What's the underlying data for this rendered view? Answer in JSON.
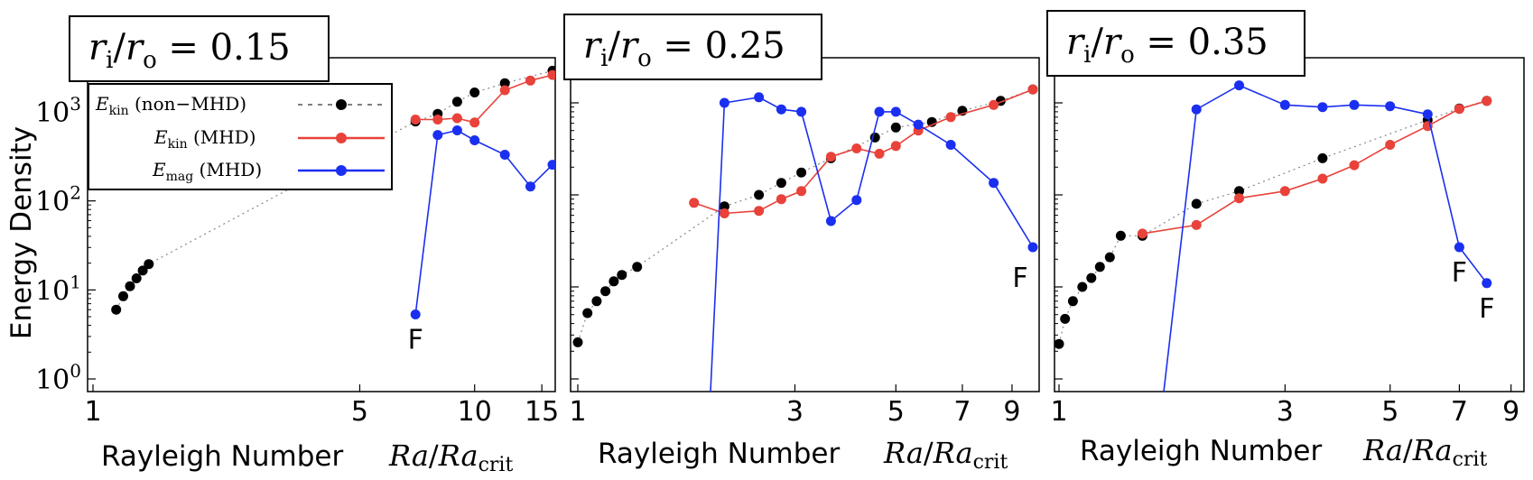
{
  "y_axis_label": "Energy Density",
  "chart_data": [
    {
      "type": "line",
      "title": "r_i/r_o = 0.15",
      "title_parts": {
        "r": "r",
        "i": "i",
        "slash": "/",
        "o": "o",
        "value": " = 0.15"
      },
      "xscale": "log",
      "yscale": "log",
      "xlim": [
        1.0,
        16.0
      ],
      "ylim": [
        1,
        3000
      ],
      "xticks": [
        1,
        5,
        10,
        15
      ],
      "yticks": [
        {
          "value": 1,
          "base": "10",
          "exp": "0"
        },
        {
          "value": 10,
          "base": "10",
          "exp": "1"
        },
        {
          "value": 100,
          "base": "10",
          "exp": "2"
        },
        {
          "value": 1000,
          "base": "10",
          "exp": "3"
        }
      ],
      "xlabel_text": "Rayleigh Number",
      "xlabel_math": {
        "ra": "Ra",
        "slash": "/",
        "ra2": "Ra",
        "sub": "crit"
      },
      "legend": {
        "placement": "upper-left",
        "entries": [
          {
            "symbol": "E",
            "sub": "kin",
            "label": " (non−MHD)",
            "style": "dotted-black"
          },
          {
            "symbol": "E",
            "sub": "kin",
            "label": " (MHD)",
            "style": "red-line"
          },
          {
            "symbol": "E",
            "sub": "mag",
            "label": " (MHD)",
            "style": "blue-line"
          }
        ]
      },
      "series": [
        {
          "name": "E_kin (non-MHD)",
          "color": "#000000",
          "line": "dotted",
          "x": [
            1.15,
            1.2,
            1.25,
            1.3,
            1.35,
            1.4,
            7.0,
            8.0,
            9.0,
            10.0,
            12.0,
            16.0
          ],
          "y": [
            6,
            8.5,
            11,
            13.5,
            16.5,
            19.5,
            780,
            950,
            1300,
            1650,
            2100,
            2900
          ]
        },
        {
          "name": "E_kin (MHD)",
          "color": "#e8423a",
          "line": "solid",
          "x": [
            7.0,
            8.0,
            9.0,
            10.0,
            12.0,
            14.0,
            16.0
          ],
          "y": [
            820,
            820,
            850,
            760,
            1750,
            2250,
            2600
          ]
        },
        {
          "name": "E_mag (MHD)",
          "color": "#1a2ff0",
          "line": "solid",
          "x": [
            7.0,
            8.0,
            9.0,
            10.0,
            12.0,
            14.0,
            16.0
          ],
          "y": [
            5.3,
            550,
            620,
            480,
            330,
            145,
            255
          ]
        }
      ],
      "annotations": [
        {
          "text": "F",
          "x": 7.0,
          "y": 5.3,
          "position": "below"
        }
      ]
    },
    {
      "type": "line",
      "title": "r_i/r_o = 0.25",
      "title_parts": {
        "r": "r",
        "i": "i",
        "slash": "/",
        "o": "o",
        "value": " = 0.25"
      },
      "xscale": "log",
      "yscale": "log",
      "xlim": [
        1.0,
        10.0
      ],
      "ylim": [
        1,
        3000
      ],
      "xticks": [
        1,
        3,
        5,
        7,
        9
      ],
      "xlabel_text": "Rayleigh Number",
      "xlabel_math": {
        "ra": "Ra",
        "slash": "/",
        "ra2": "Ra",
        "sub": "crit"
      },
      "series": [
        {
          "name": "E_kin (non-MHD)",
          "color": "#000000",
          "line": "dotted",
          "x": [
            1.0,
            1.05,
            1.1,
            1.15,
            1.2,
            1.25,
            1.35,
            2.1,
            2.5,
            2.8,
            3.1,
            3.6,
            4.5,
            5.0,
            6.0,
            7.0,
            8.5,
            10.0
          ],
          "y": [
            2.5,
            5.2,
            7,
            9,
            11.5,
            13.5,
            16.5,
            75,
            100,
            135,
            175,
            250,
            420,
            540,
            620,
            820,
            1050,
            1400
          ]
        },
        {
          "name": "E_kin (MHD)",
          "color": "#e8423a",
          "line": "solid",
          "x": [
            1.8,
            2.1,
            2.5,
            2.8,
            3.1,
            3.6,
            4.1,
            4.6,
            5.0,
            5.6,
            6.6,
            8.2,
            10.0
          ],
          "y": [
            82,
            63,
            67,
            90,
            110,
            260,
            320,
            280,
            340,
            500,
            700,
            950,
            1400
          ]
        },
        {
          "name": "E_mag (MHD)",
          "color": "#1a2ff0",
          "line": "solid",
          "x": [
            1.95,
            2.1,
            2.5,
            2.8,
            3.1,
            3.6,
            4.1,
            4.6,
            5.0,
            5.6,
            6.6,
            8.2,
            10.0
          ],
          "y": [
            0.5,
            1000,
            1150,
            850,
            800,
            52,
            88,
            800,
            800,
            580,
            350,
            135,
            27
          ]
        }
      ],
      "annotations": [
        {
          "text": "F",
          "x": 10.0,
          "y": 27,
          "position": "below-left"
        }
      ]
    },
    {
      "type": "line",
      "title": "r_i/r_o = 0.35",
      "title_parts": {
        "r": "r",
        "i": "i",
        "slash": "/",
        "o": "o",
        "value": " = 0.35"
      },
      "xscale": "log",
      "yscale": "log",
      "xlim": [
        1.0,
        9.5
      ],
      "ylim": [
        1,
        3000
      ],
      "xticks": [
        1,
        3,
        5,
        7,
        9
      ],
      "xlabel_text": "Rayleigh Number",
      "xlabel_math": {
        "ra": "Ra",
        "slash": "/",
        "ra2": "Ra",
        "sub": "crit"
      },
      "series": [
        {
          "name": "E_kin (non-MHD)",
          "color": "#000000",
          "line": "dotted",
          "x": [
            1.0,
            1.03,
            1.07,
            1.12,
            1.17,
            1.22,
            1.28,
            1.35,
            1.5,
            1.95,
            2.4,
            3.6,
            6.0,
            7.0,
            8.0
          ],
          "y": [
            2.4,
            4.5,
            7,
            10,
            12.5,
            16.5,
            21,
            36,
            36,
            80,
            110,
            250,
            650,
            870,
            1050
          ]
        },
        {
          "name": "E_kin (MHD)",
          "color": "#e8423a",
          "line": "solid",
          "x": [
            1.5,
            1.95,
            2.4,
            3.0,
            3.6,
            4.2,
            5.0,
            6.0,
            7.0,
            8.0
          ],
          "y": [
            38,
            47,
            92,
            110,
            150,
            210,
            350,
            560,
            860,
            1050
          ]
        },
        {
          "name": "E_mag (MHD)",
          "color": "#1a2ff0",
          "line": "solid",
          "x": [
            1.65,
            1.95,
            2.4,
            3.0,
            3.6,
            4.2,
            5.0,
            6.0,
            7.0,
            8.0
          ],
          "y": [
            0.5,
            850,
            1550,
            950,
            900,
            950,
            920,
            750,
            27,
            11
          ]
        }
      ],
      "annotations": [
        {
          "text": "F",
          "x": 7.0,
          "y": 27,
          "position": "below"
        },
        {
          "text": "F",
          "x": 8.0,
          "y": 11,
          "position": "below"
        }
      ]
    }
  ]
}
